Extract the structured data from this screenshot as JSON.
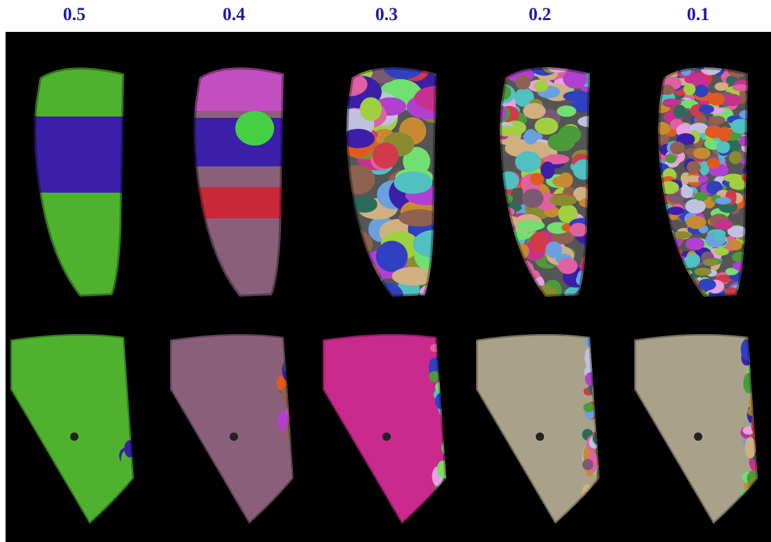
{
  "column_labels": [
    "0.5",
    "0.4",
    "0.3",
    "0.2",
    "0.1"
  ]
}
